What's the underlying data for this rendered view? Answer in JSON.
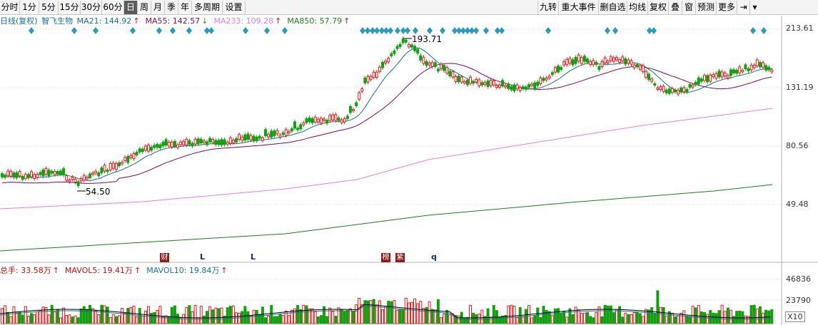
{
  "toolbar": {
    "left_buttons": [
      "分时",
      "1分",
      "5分",
      "15分",
      "30分",
      "60分",
      "日",
      "周",
      "月",
      "季",
      "年",
      "多周期",
      "设置"
    ],
    "active": "日",
    "right_buttons": [
      "九转",
      "重大事件",
      "删自选",
      "均线",
      "复权",
      "叠",
      "窗",
      "预测",
      "更多"
    ],
    "pin_icon": "pin-icon",
    "dropdown_icon": "chevron-down-icon"
  },
  "legend": {
    "period": "日线(复权)",
    "stock": "智飞生物",
    "ma": [
      {
        "label": "MA21: 144.92",
        "color": "#1c6f8c",
        "arrow": "↑",
        "arrow_color": "#d01010"
      },
      {
        "label": "MA55: 142.57",
        "color": "#7a0a5a",
        "arrow": "↓",
        "arrow_color": "#22aa22"
      },
      {
        "label": "MA233: 109.28",
        "color": "#e080e0",
        "arrow": "↑",
        "arrow_color": "#d01010"
      },
      {
        "label": "MA850: 57.79",
        "color": "#1f7a1f",
        "arrow": "↑",
        "arrow_color": "#d01010"
      }
    ]
  },
  "vol_legend": {
    "items": [
      {
        "label": "总手: 33.58万",
        "color": "#c01010",
        "arrow": "↑"
      },
      {
        "label": "MAVOL5: 19.41万",
        "color": "#c01010",
        "arrow": "↑"
      },
      {
        "label": "MAVOL10: 19.84万",
        "color": "#1c6f8c",
        "arrow": "↑"
      }
    ]
  },
  "chart_data": {
    "type": "candlestick",
    "y_axis_labels": [
      "213.61",
      "131.19",
      "80.56",
      "49.48"
    ],
    "volume_axis_labels": [
      "46836",
      "23790"
    ],
    "volume_unit_button": "X10",
    "annotations": [
      {
        "text": "193.71",
        "type": "high"
      },
      {
        "text": "54.50",
        "type": "low"
      }
    ],
    "event_marks": [
      "财",
      "L",
      "L",
      "榜",
      "紫",
      "q"
    ],
    "colors": {
      "up": "#e02020",
      "down": "#10a010",
      "ma21": "#1c6f8c",
      "ma55": "#7a0a5a",
      "ma233": "#e080e0",
      "ma850": "#1f7a1f"
    }
  }
}
